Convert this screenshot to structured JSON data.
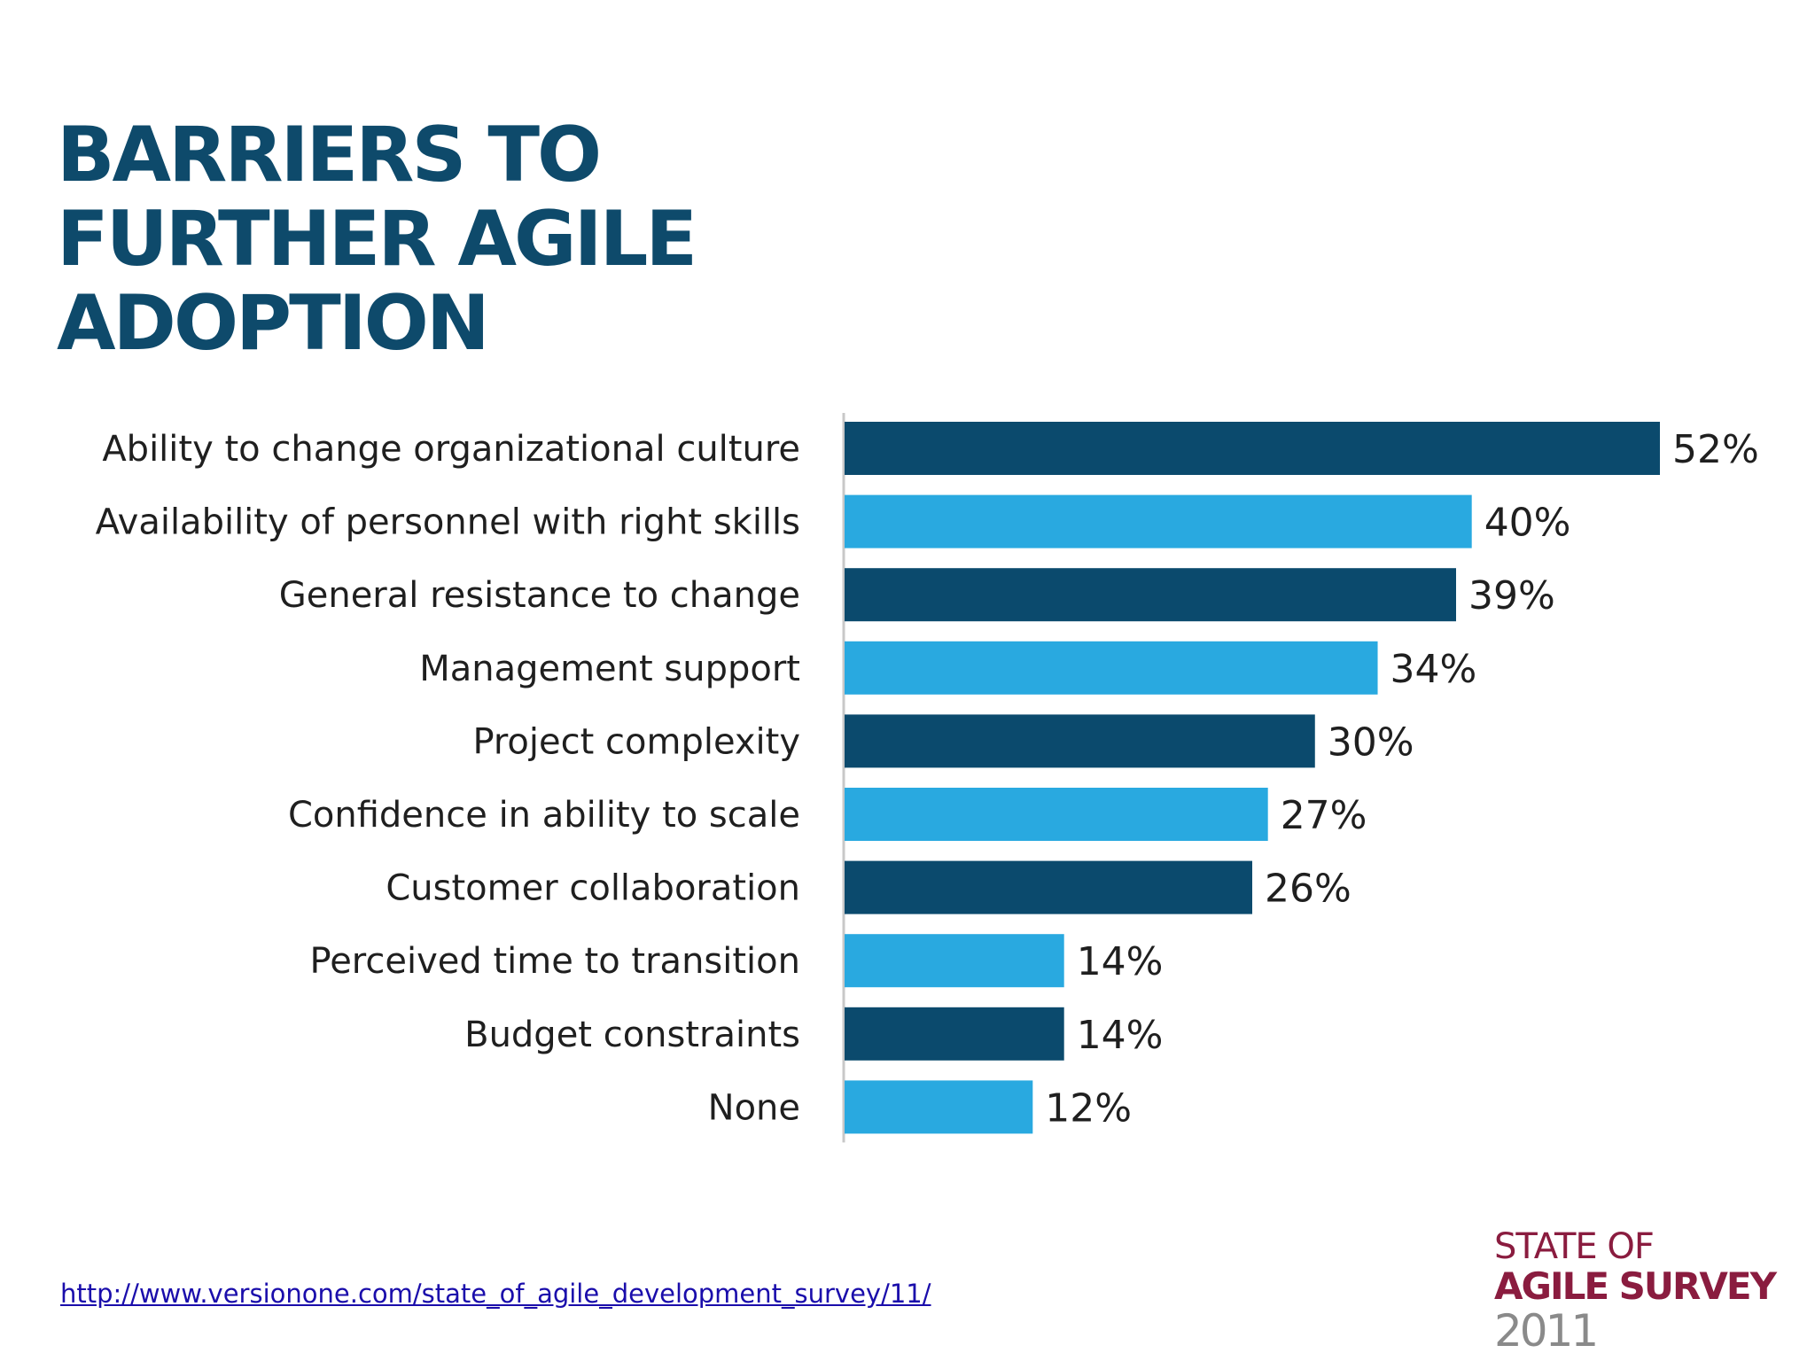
{
  "title_lines": [
    "BARRIERS TO",
    "FURTHER AGILE",
    "ADOPTION"
  ],
  "source_url": "http://www.versionone.com/state_of_agile_development_survey/11/",
  "logo": {
    "line1": "STATE OF",
    "line2": "AGILE SURVEY",
    "line3": "2011"
  },
  "colors": {
    "dark": "#0b4a6d",
    "light": "#29a9e0",
    "title": "#0e4a6b",
    "axis": "#c8c8c8"
  },
  "chart_data": {
    "type": "bar",
    "orientation": "horizontal",
    "title": "BARRIERS TO FURTHER AGILE ADOPTION",
    "categories": [
      "Ability to change organizational culture",
      "Availability of personnel with right skills",
      "General resistance to change",
      "Management support",
      "Project complexity",
      "Confidence in ability to scale",
      "Customer collaboration",
      "Perceived time to transition",
      "Budget constraints",
      "None"
    ],
    "values": [
      52,
      40,
      39,
      34,
      30,
      27,
      26,
      14,
      14,
      12
    ],
    "value_labels": [
      "52%",
      "40%",
      "39%",
      "34%",
      "30%",
      "27%",
      "26%",
      "14%",
      "14%",
      "12%"
    ],
    "bar_colors": [
      "dark",
      "light",
      "dark",
      "light",
      "dark",
      "light",
      "dark",
      "light",
      "dark",
      "light"
    ],
    "unit": "%",
    "xlim": [
      0,
      52
    ],
    "grid": false,
    "legend": "none"
  }
}
